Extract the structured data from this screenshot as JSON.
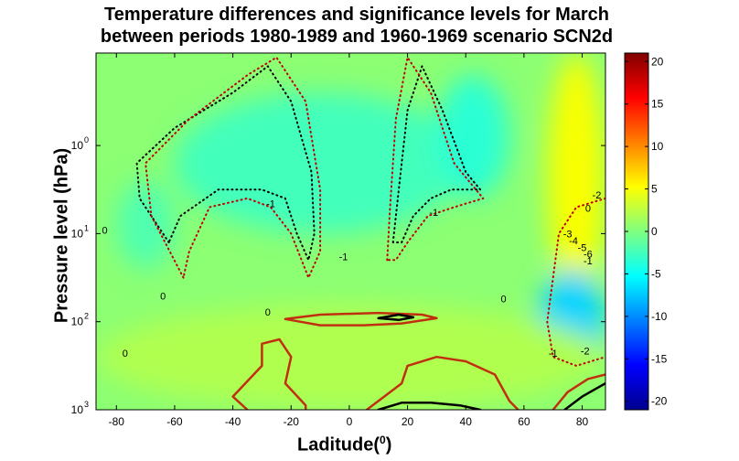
{
  "chart_data": {
    "type": "heatmap",
    "title": "Temperature differences and significance levels for March",
    "subtitle": "between periods 1980-1989 and 1960-1969 scenario SCN2d",
    "xlabel": "Laditude",
    "xlabel_superscript": "0",
    "xlabel_suffix": ")",
    "xlabel_prefix": "(",
    "ylabel": "Pressure level (hPa)",
    "xlim": [
      -87,
      88
    ],
    "x_ticks": [
      -80,
      -60,
      -40,
      -20,
      0,
      20,
      40,
      60,
      80
    ],
    "y_scale": "log-reversed",
    "ylim_exponent": [
      -1.05,
      3
    ],
    "y_ticks": [
      {
        "base": "10",
        "exp": "0",
        "value": 0
      },
      {
        "base": "10",
        "exp": "1",
        "value": 1
      },
      {
        "base": "10",
        "exp": "2",
        "value": 2
      },
      {
        "base": "10",
        "exp": "3",
        "value": 3
      }
    ],
    "colorbar": {
      "min": -21,
      "max": 21,
      "ticks": [
        20,
        15,
        10,
        5,
        0,
        -5,
        -10,
        -15,
        -20
      ],
      "colormap": "jet"
    },
    "background_value": 0.5,
    "regions": [
      {
        "desc": "cool pocket near south pole stratosphere",
        "value": -2,
        "x": [
          -80,
          -60
        ],
        "y": [
          0.4,
          1.4
        ]
      },
      {
        "desc": "cool tongue mid-latitudes stratosphere",
        "value": -2.5,
        "x": [
          -60,
          40
        ],
        "y": [
          -0.6,
          1.0
        ]
      },
      {
        "desc": "cool cell near 45N",
        "value": -3.5,
        "x": [
          30,
          55
        ],
        "y": [
          -0.8,
          0.6
        ]
      },
      {
        "desc": "warm north pole upper stratosphere",
        "value": 5,
        "x": [
          68,
          88
        ],
        "y": [
          -1.05,
          1.8
        ]
      },
      {
        "desc": "cold north pole mid stratosphere",
        "value": -7,
        "x": [
          65,
          88
        ],
        "y": [
          1.4,
          2.6
        ]
      },
      {
        "desc": "slight warm lower atmosphere",
        "value": 2,
        "x": [
          -87,
          88
        ],
        "y": [
          1.8,
          3
        ]
      }
    ],
    "contour_labels": [
      {
        "text": "0",
        "x": -84,
        "y": 1.0
      },
      {
        "text": "0",
        "x": -64,
        "y": 1.75
      },
      {
        "text": "0",
        "x": -28,
        "y": 1.93
      },
      {
        "text": "0",
        "x": -77,
        "y": 2.4
      },
      {
        "text": "0",
        "x": 53,
        "y": 1.78
      },
      {
        "text": "-1",
        "x": -27,
        "y": 0.7
      },
      {
        "text": "-1",
        "x": 29,
        "y": 0.8
      },
      {
        "text": "-1",
        "x": -2,
        "y": 1.3
      },
      {
        "text": "-1",
        "x": 70,
        "y": 2.4
      },
      {
        "text": "-2",
        "x": 81,
        "y": 2.37
      },
      {
        "text": "-3",
        "x": 75,
        "y": 1.04
      },
      {
        "text": "-4",
        "x": 77,
        "y": 1.12
      },
      {
        "text": "-5",
        "x": 80,
        "y": 1.2
      },
      {
        "text": "-6",
        "x": 82,
        "y": 1.27
      },
      {
        "text": "-1",
        "x": 82,
        "y": 1.35
      },
      {
        "text": "-2",
        "x": 85,
        "y": 0.6
      },
      {
        "text": "0",
        "x": 82,
        "y": 0.75
      }
    ],
    "significance_contours": [
      {
        "desc": "black 95% upper-left tongue dotted",
        "style": "dotted-black",
        "points": [
          [
            -62,
            1.1
          ],
          [
            -72,
            0.6
          ],
          [
            -73,
            0.2
          ],
          [
            -60,
            -0.2
          ],
          [
            -40,
            -0.6
          ],
          [
            -28,
            -0.9
          ],
          [
            -20,
            -0.5
          ],
          [
            -13,
            0.3
          ],
          [
            -12,
            1.0
          ],
          [
            -14,
            1.3
          ],
          [
            -18,
            1.0
          ],
          [
            -22,
            0.6
          ],
          [
            -30,
            0.5
          ],
          [
            -45,
            0.5
          ],
          [
            -58,
            0.8
          ],
          [
            -62,
            1.1
          ]
        ]
      },
      {
        "desc": "red 90% upper-left tongue dotted",
        "style": "dotted-red",
        "points": [
          [
            -57,
            1.5
          ],
          [
            -68,
            0.8
          ],
          [
            -70,
            0.2
          ],
          [
            -55,
            -0.3
          ],
          [
            -35,
            -0.8
          ],
          [
            -25,
            -1.0
          ],
          [
            -15,
            -0.5
          ],
          [
            -10,
            0.5
          ],
          [
            -10,
            1.2
          ],
          [
            -14,
            1.5
          ],
          [
            -20,
            1.0
          ],
          [
            -27,
            0.7
          ],
          [
            -35,
            0.6
          ],
          [
            -48,
            0.7
          ],
          [
            -55,
            1.2
          ],
          [
            -57,
            1.5
          ]
        ]
      },
      {
        "desc": "black dotted mid tongue",
        "style": "dotted-black",
        "points": [
          [
            15,
            1.1
          ],
          [
            17,
            0.5
          ],
          [
            20,
            -0.4
          ],
          [
            25,
            -0.9
          ],
          [
            32,
            -0.4
          ],
          [
            40,
            0.3
          ],
          [
            45,
            0.5
          ],
          [
            35,
            0.5
          ],
          [
            28,
            0.6
          ],
          [
            22,
            0.8
          ],
          [
            18,
            1.1
          ],
          [
            15,
            1.1
          ]
        ]
      },
      {
        "desc": "red dotted mid tongue",
        "style": "dotted-red",
        "points": [
          [
            13,
            1.3
          ],
          [
            14,
            0.7
          ],
          [
            16,
            -0.3
          ],
          [
            20,
            -1.0
          ],
          [
            28,
            -0.6
          ],
          [
            36,
            0.2
          ],
          [
            46,
            0.6
          ],
          [
            36,
            0.7
          ],
          [
            27,
            0.8
          ],
          [
            20,
            1.1
          ],
          [
            16,
            1.3
          ],
          [
            13,
            1.3
          ]
        ]
      },
      {
        "desc": "red dotted north pole cold",
        "style": "dotted-red",
        "points": [
          [
            88,
            0.6
          ],
          [
            78,
            0.7
          ],
          [
            72,
            1.0
          ],
          [
            70,
            1.5
          ],
          [
            68,
            2.0
          ],
          [
            70,
            2.4
          ],
          [
            78,
            2.5
          ],
          [
            88,
            2.4
          ]
        ]
      },
      {
        "desc": "red 90% positive around 100 hPa",
        "style": "solid-red",
        "points": [
          [
            -22,
            1.97
          ],
          [
            -10,
            1.92
          ],
          [
            10,
            1.9
          ],
          [
            25,
            1.92
          ],
          [
            30,
            1.96
          ],
          [
            18,
            2.02
          ],
          [
            5,
            2.04
          ],
          [
            -10,
            2.04
          ],
          [
            -22,
            1.97
          ]
        ]
      },
      {
        "desc": "black 95% positive around 100 hPa",
        "style": "solid-black",
        "points": [
          [
            10,
            1.96
          ],
          [
            17,
            1.92
          ],
          [
            22,
            1.95
          ],
          [
            17,
            1.98
          ],
          [
            10,
            1.96
          ]
        ]
      },
      {
        "desc": "red solid lower left blob",
        "style": "solid-red",
        "points": [
          [
            -35,
            3.0
          ],
          [
            -40,
            2.85
          ],
          [
            -30,
            2.5
          ],
          [
            -30,
            2.25
          ],
          [
            -24,
            2.2
          ],
          [
            -20,
            2.4
          ],
          [
            -22,
            2.7
          ],
          [
            -15,
            2.95
          ],
          [
            -15,
            3.0
          ]
        ]
      },
      {
        "desc": "red solid lower right blob",
        "style": "solid-red",
        "points": [
          [
            6,
            3.0
          ],
          [
            18,
            2.7
          ],
          [
            20,
            2.5
          ],
          [
            30,
            2.4
          ],
          [
            40,
            2.45
          ],
          [
            50,
            2.6
          ],
          [
            55,
            2.9
          ],
          [
            58,
            3.0
          ]
        ]
      },
      {
        "desc": "black solid lower right",
        "style": "solid-black",
        "points": [
          [
            10,
            3.0
          ],
          [
            18,
            2.92
          ],
          [
            28,
            2.92
          ],
          [
            38,
            2.95
          ],
          [
            45,
            3.0
          ]
        ]
      },
      {
        "desc": "red solid lower right corner",
        "style": "solid-red",
        "points": [
          [
            70,
            3.0
          ],
          [
            75,
            2.8
          ],
          [
            82,
            2.65
          ],
          [
            88,
            2.6
          ]
        ]
      },
      {
        "desc": "black solid lower right corner",
        "style": "solid-black",
        "points": [
          [
            74,
            3.0
          ],
          [
            80,
            2.85
          ],
          [
            88,
            2.7
          ]
        ]
      }
    ]
  }
}
